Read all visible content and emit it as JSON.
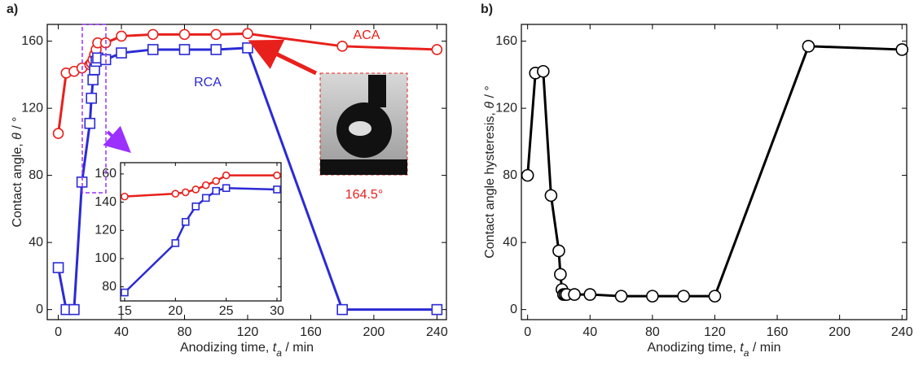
{
  "chart_data": [
    {
      "type": "line",
      "label": "a)",
      "x_label": [
        "Anodizing time, ",
        "t",
        "a",
        " / min"
      ],
      "y_label": [
        "Contact angle, ",
        "θ",
        " / °"
      ],
      "x": [
        0,
        5,
        10,
        15,
        20,
        21,
        22,
        23,
        24,
        25,
        30,
        40,
        60,
        80,
        100,
        120,
        180,
        240
      ],
      "series": [
        {
          "name": "ACA",
          "color": "#e8201c",
          "marker": "circle",
          "values": [
            105,
            141,
            142,
            144,
            146,
            147,
            149,
            152,
            155,
            159,
            159,
            163,
            164,
            164,
            164,
            164.5,
            157,
            155
          ]
        },
        {
          "name": "RCA",
          "color": "#2a2ad6",
          "marker": "square",
          "values": [
            25,
            0,
            0,
            76,
            111,
            126,
            137,
            143,
            148,
            150,
            149,
            153,
            155,
            155,
            155,
            156,
            0,
            0
          ]
        }
      ],
      "xlim": [
        -7,
        246
      ],
      "xticks": [
        0,
        40,
        80,
        120,
        160,
        200,
        240
      ],
      "ylim": [
        -6,
        170
      ],
      "yticks": [
        0,
        40,
        80,
        120,
        160
      ],
      "annotations": [
        "ACA",
        "RCA",
        "164.5°"
      ],
      "inset": {
        "xlim": [
          14.6,
          30.4
        ],
        "xticks": [
          15,
          20,
          25,
          30
        ],
        "ylim": [
          70,
          168
        ],
        "yticks": [
          80,
          100,
          120,
          140,
          160
        ]
      }
    },
    {
      "type": "line",
      "label": "b)",
      "x_label": [
        "Anodizing time, ",
        "t",
        "a",
        " / min"
      ],
      "y_label": [
        "Contact angle hysteresis, ",
        "θ",
        " / °"
      ],
      "x": [
        0,
        5,
        10,
        15,
        20,
        21,
        22,
        23,
        24,
        25,
        30,
        40,
        60,
        80,
        100,
        120,
        180,
        240
      ],
      "series": [
        {
          "color": "#000000",
          "marker": "circle",
          "values": [
            80,
            141,
            142,
            68,
            35,
            21,
            12,
            9,
            9,
            9,
            9,
            9,
            8,
            8,
            8,
            8,
            157,
            155
          ]
        }
      ],
      "xlim": [
        -4,
        243
      ],
      "xticks": [
        0,
        40,
        80,
        120,
        160,
        200,
        240
      ],
      "ylim": [
        -6,
        170
      ],
      "yticks": [
        0,
        40,
        80,
        120,
        160
      ]
    }
  ]
}
